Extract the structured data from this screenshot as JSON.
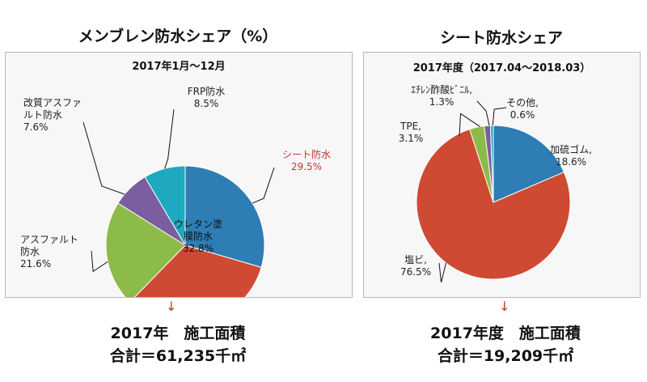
{
  "left": {
    "title": "メンブレン防水シェア（%）",
    "subtitle": "2017年1月～12月",
    "total_line1": "2017年　施工面積",
    "total_line2": "合計＝61,235千㎡",
    "chart_data": {
      "type": "pie",
      "title": "メンブレン防水シェア（%）",
      "subtitle": "2017年1月～12月",
      "slices": [
        {
          "label": "シート防水",
          "value_label": "29.5%",
          "value": 29.5,
          "color": "#2E7DB5"
        },
        {
          "label": "ウレタン塗膜防水",
          "label_lines": [
            "ウレタン塗",
            "膜防水"
          ],
          "value_label": "32.8%",
          "value": 32.8,
          "color": "#CF4A33"
        },
        {
          "label": "アスファルト防水",
          "label_lines": [
            "アスファルト",
            "防水"
          ],
          "value_label": "21.6%",
          "value": 21.6,
          "color": "#8DBB49"
        },
        {
          "label": "改質アスファルト防水",
          "label_lines": [
            "改質アスファ",
            "ルト防水"
          ],
          "value_label": "7.6%",
          "value": 7.6,
          "color": "#7B5E9F"
        },
        {
          "label": "FRP防水",
          "value_label": "8.5%",
          "value": 8.5,
          "color": "#1FA9C0"
        }
      ]
    }
  },
  "right": {
    "title": "シート防水シェア",
    "subtitle": "2017年度（2017.04～2018.03）",
    "total_line1": "2017年度　施工面積",
    "total_line2": "合計＝19,209千㎡",
    "chart_data": {
      "type": "pie",
      "title": "シート防水シェア",
      "subtitle": "2017年度（2017.04～2018.03）",
      "slices": [
        {
          "label": "加硫ゴム",
          "text": "加硫ゴム,",
          "value_label": "18.6%",
          "value": 18.6,
          "color": "#2E7DB5"
        },
        {
          "label": "塩ビ",
          "text": "塩ビ,",
          "value_label": "76.5%",
          "value": 76.5,
          "color": "#CF4A33"
        },
        {
          "label": "TPE",
          "text": "TPE,",
          "value_label": "3.1%",
          "value": 3.1,
          "color": "#8DBB49"
        },
        {
          "label": "ｴﾁﾚﾝ酢酸ﾋﾞﾆﾙ",
          "text": "ｴﾁﾚﾝ酢酸ﾋﾞﾆﾙ,",
          "value_label": "1.3%",
          "value": 1.3,
          "color": "#7B5E9F"
        },
        {
          "label": "その他",
          "text": "その他,",
          "value_label": "0.6%",
          "value": 0.6,
          "color": "#1FA9C0"
        }
      ]
    }
  }
}
